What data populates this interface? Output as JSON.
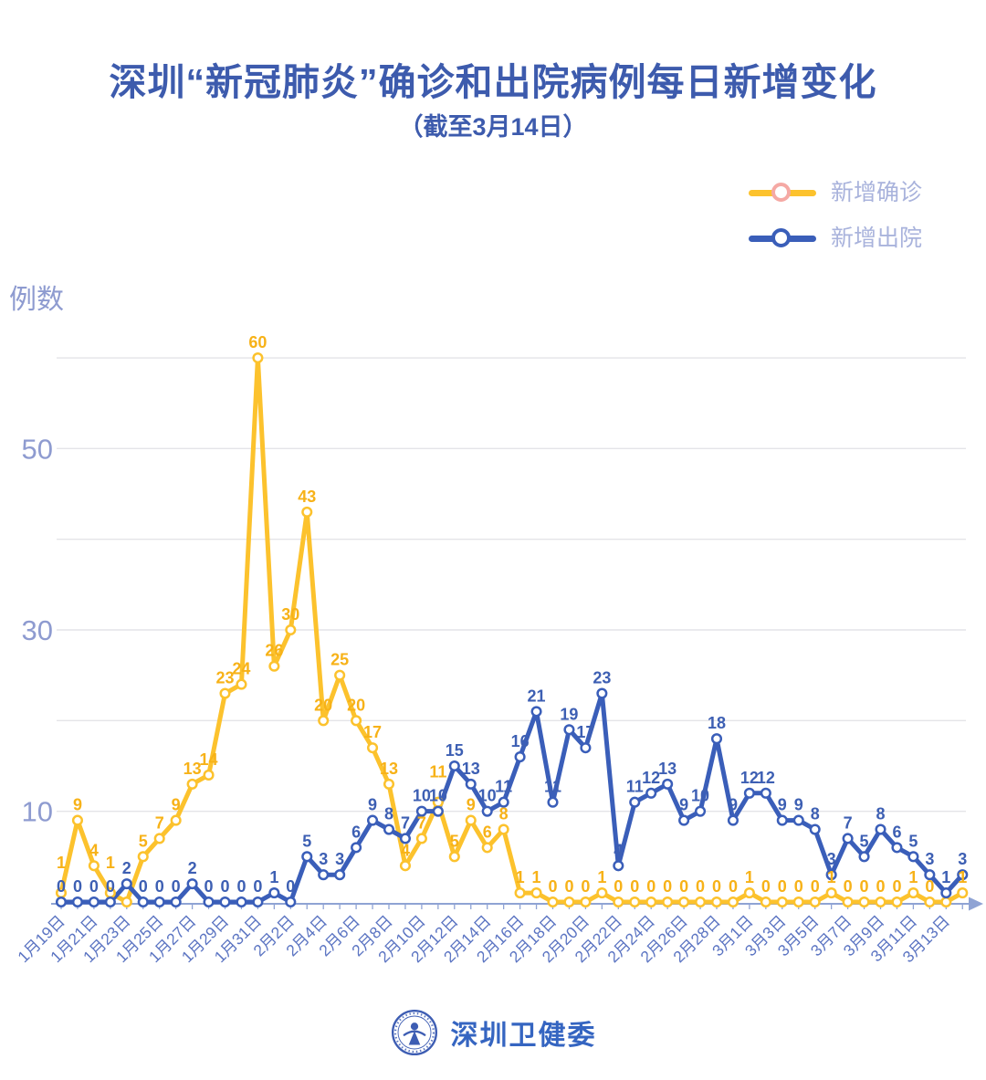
{
  "title": "深圳“新冠肺炎”确诊和出院病例每日新增变化",
  "subtitle": "（截至3月14日）",
  "legend": {
    "position": "top-right",
    "items": [
      {
        "label": "新增确诊",
        "color": "#FCC22D",
        "marker_ring": "#F5A9A4"
      },
      {
        "label": "新增出院",
        "color": "#3A5EB9",
        "marker_ring": "#3A5EB9"
      }
    ]
  },
  "footer": {
    "brand": "深圳卫健委"
  },
  "colors": {
    "title": "#3D5BAD",
    "legend_text": "#A9B3DC",
    "axis_text": "#8E9BD0",
    "x_label": "#5B74C2",
    "gridline": "#E4E4E8",
    "axis_line": "#8FA3D4",
    "confirmed": "#FCC22D",
    "confirmed_label": "#F7B218",
    "discharged": "#3A5EB9",
    "discharged_label": "#3D5FB3",
    "brand": "#3565C1",
    "background": "#FFFFFF"
  },
  "chart_data": {
    "type": "line",
    "title": "深圳“新冠肺炎”确诊和出院病例每日新增变化",
    "subtitle": "（截至3月14日）",
    "xlabel": "",
    "ylabel": "例数",
    "yticks": [
      10,
      30,
      50
    ],
    "grid_values": [
      10,
      20,
      30,
      40,
      50,
      60
    ],
    "ylim": [
      0,
      62
    ],
    "grid": true,
    "legend_position": "top-right",
    "x_tick_step": 2,
    "x": [
      "1月19日",
      "1月20日",
      "1月21日",
      "1月22日",
      "1月23日",
      "1月24日",
      "1月25日",
      "1月26日",
      "1月27日",
      "1月28日",
      "1月29日",
      "1月30日",
      "1月31日",
      "2月1日",
      "2月2日",
      "2月3日",
      "2月4日",
      "2月5日",
      "2月6日",
      "2月7日",
      "2月8日",
      "2月9日",
      "2月10日",
      "2月11日",
      "2月12日",
      "2月13日",
      "2月14日",
      "2月15日",
      "2月16日",
      "2月17日",
      "2月18日",
      "2月19日",
      "2月20日",
      "2月21日",
      "2月22日",
      "2月23日",
      "2月24日",
      "2月25日",
      "2月26日",
      "2月27日",
      "2月28日",
      "2月29日",
      "3月1日",
      "3月2日",
      "3月3日",
      "3月4日",
      "3月5日",
      "3月6日",
      "3月7日",
      "3月8日",
      "3月9日",
      "3月10日",
      "3月11日",
      "3月12日",
      "3月13日",
      "3月14日"
    ],
    "series": [
      {
        "name": "新增确诊",
        "color": "#FCC22D",
        "values": [
          1,
          9,
          4,
          1,
          0,
          5,
          7,
          9,
          13,
          14,
          23,
          24,
          60,
          26,
          30,
          43,
          20,
          25,
          20,
          17,
          13,
          4,
          7,
          11,
          5,
          9,
          6,
          8,
          1,
          1,
          0,
          0,
          0,
          1,
          0,
          0,
          0,
          0,
          0,
          0,
          0,
          0,
          1,
          0,
          0,
          0,
          0,
          1,
          0,
          0,
          0,
          0,
          1,
          0,
          0,
          1
        ]
      },
      {
        "name": "新增出院",
        "color": "#3A5EB9",
        "values": [
          0,
          0,
          0,
          0,
          2,
          0,
          0,
          0,
          2,
          0,
          0,
          0,
          0,
          1,
          0,
          5,
          3,
          3,
          6,
          9,
          8,
          7,
          10,
          10,
          15,
          13,
          10,
          11,
          16,
          21,
          11,
          19,
          17,
          23,
          4,
          11,
          12,
          13,
          9,
          10,
          18,
          9,
          12,
          12,
          9,
          9,
          8,
          3,
          7,
          5,
          8,
          6,
          5,
          3,
          1,
          3
        ]
      }
    ]
  }
}
